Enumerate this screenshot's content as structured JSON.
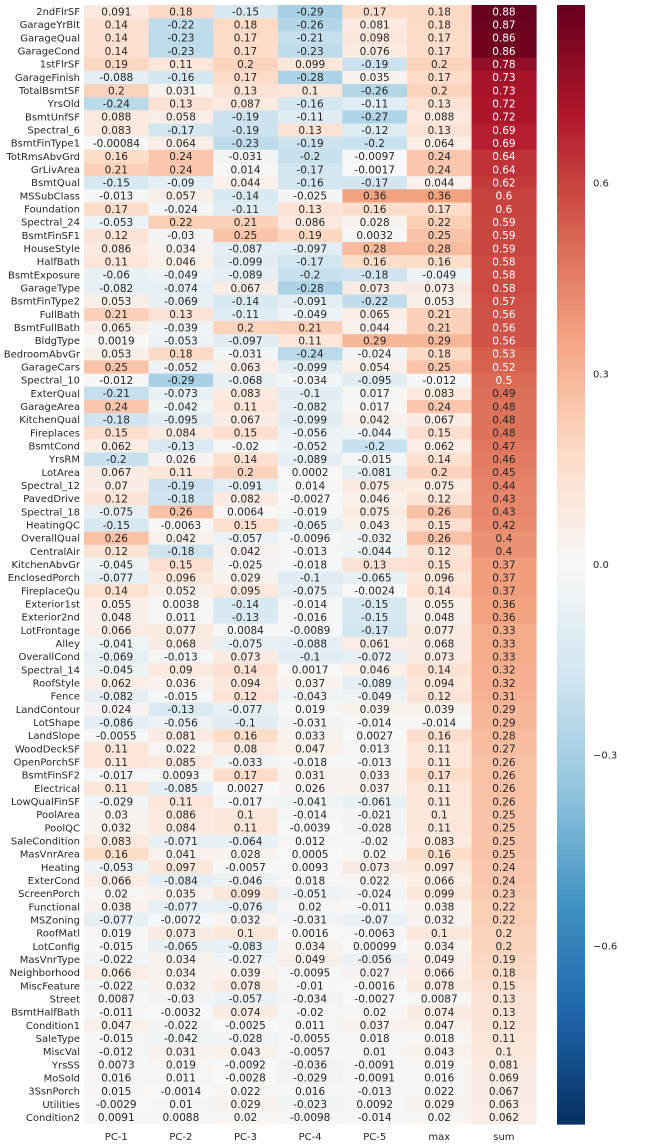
{
  "chart_data": {
    "type": "heatmap",
    "columns": [
      "PC-1",
      "PC-2",
      "PC-3",
      "PC-4",
      "PC-5",
      "max",
      "sum"
    ],
    "rows": [
      {
        "label": "2ndFlrSF",
        "values": [
          "0.091",
          "0.18",
          "-0.15",
          "-0.29",
          "0.17",
          "0.18",
          "0.88"
        ]
      },
      {
        "label": "GarageYrBlt",
        "values": [
          "0.14",
          "-0.22",
          "0.18",
          "-0.26",
          "0.081",
          "0.18",
          "0.87"
        ]
      },
      {
        "label": "GarageQual",
        "values": [
          "0.14",
          "-0.23",
          "0.17",
          "-0.21",
          "0.098",
          "0.17",
          "0.86"
        ]
      },
      {
        "label": "GarageCond",
        "values": [
          "0.14",
          "-0.23",
          "0.17",
          "-0.23",
          "0.076",
          "0.17",
          "0.86"
        ]
      },
      {
        "label": "1stFlrSF",
        "values": [
          "0.19",
          "0.11",
          "0.2",
          "0.099",
          "-0.19",
          "0.2",
          "0.78"
        ]
      },
      {
        "label": "GarageFinish",
        "values": [
          "-0.088",
          "-0.16",
          "0.17",
          "-0.28",
          "0.035",
          "0.17",
          "0.73"
        ]
      },
      {
        "label": "TotalBsmtSF",
        "values": [
          "0.2",
          "0.031",
          "0.13",
          "0.1",
          "-0.26",
          "0.2",
          "0.73"
        ]
      },
      {
        "label": "YrsOld",
        "values": [
          "-0.24",
          "0.13",
          "0.087",
          "-0.16",
          "-0.11",
          "0.13",
          "0.72"
        ]
      },
      {
        "label": "BsmtUnfSF",
        "values": [
          "0.088",
          "0.058",
          "-0.19",
          "-0.11",
          "-0.27",
          "0.088",
          "0.72"
        ]
      },
      {
        "label": "Spectral_6",
        "values": [
          "0.083",
          "-0.17",
          "-0.19",
          "0.13",
          "-0.12",
          "0.13",
          "0.69"
        ]
      },
      {
        "label": "BsmtFinType1",
        "values": [
          "-0.00084",
          "0.064",
          "-0.23",
          "-0.19",
          "-0.2",
          "0.064",
          "0.69"
        ]
      },
      {
        "label": "TotRmsAbvGrd",
        "values": [
          "0.16",
          "0.24",
          "-0.031",
          "-0.2",
          "-0.0097",
          "0.24",
          "0.64"
        ]
      },
      {
        "label": "GrLivArea",
        "values": [
          "0.21",
          "0.24",
          "0.014",
          "-0.17",
          "-0.0017",
          "0.24",
          "0.64"
        ]
      },
      {
        "label": "BsmtQual",
        "values": [
          "-0.15",
          "-0.09",
          "0.044",
          "-0.16",
          "-0.17",
          "0.044",
          "0.62"
        ]
      },
      {
        "label": "MSSubClass",
        "values": [
          "-0.013",
          "0.057",
          "-0.14",
          "-0.025",
          "0.36",
          "0.36",
          "0.6"
        ]
      },
      {
        "label": "Foundation",
        "values": [
          "0.17",
          "-0.024",
          "-0.11",
          "0.13",
          "0.16",
          "0.17",
          "0.6"
        ]
      },
      {
        "label": "Spectral_24",
        "values": [
          "-0.053",
          "0.22",
          "0.21",
          "0.086",
          "0.028",
          "0.22",
          "0.59"
        ]
      },
      {
        "label": "BsmtFinSF1",
        "values": [
          "0.12",
          "-0.03",
          "0.25",
          "0.19",
          "0.0032",
          "0.25",
          "0.59"
        ]
      },
      {
        "label": "HouseStyle",
        "values": [
          "0.086",
          "0.034",
          "-0.087",
          "-0.097",
          "0.28",
          "0.28",
          "0.59"
        ]
      },
      {
        "label": "HalfBath",
        "values": [
          "0.11",
          "0.046",
          "-0.099",
          "-0.17",
          "0.16",
          "0.16",
          "0.58"
        ]
      },
      {
        "label": "BsmtExposure",
        "values": [
          "-0.06",
          "-0.049",
          "-0.089",
          "-0.2",
          "-0.18",
          "-0.049",
          "0.58"
        ]
      },
      {
        "label": "GarageType",
        "values": [
          "-0.082",
          "-0.074",
          "0.067",
          "-0.28",
          "0.073",
          "0.073",
          "0.58"
        ]
      },
      {
        "label": "BsmtFinType2",
        "values": [
          "0.053",
          "-0.069",
          "-0.14",
          "-0.091",
          "-0.22",
          "0.053",
          "0.57"
        ]
      },
      {
        "label": "FullBath",
        "values": [
          "0.21",
          "0.13",
          "-0.11",
          "-0.049",
          "0.065",
          "0.21",
          "0.56"
        ]
      },
      {
        "label": "BsmtFullBath",
        "values": [
          "0.065",
          "-0.039",
          "0.2",
          "0.21",
          "0.044",
          "0.21",
          "0.56"
        ]
      },
      {
        "label": "BldgType",
        "values": [
          "0.0019",
          "-0.053",
          "-0.097",
          "0.11",
          "0.29",
          "0.29",
          "0.56"
        ]
      },
      {
        "label": "BedroomAbvGr",
        "values": [
          "0.053",
          "0.18",
          "-0.031",
          "-0.24",
          "-0.024",
          "0.18",
          "0.53"
        ]
      },
      {
        "label": "GarageCars",
        "values": [
          "0.25",
          "-0.052",
          "0.063",
          "-0.099",
          "0.054",
          "0.25",
          "0.52"
        ]
      },
      {
        "label": "Spectral_10",
        "values": [
          "-0.012",
          "-0.29",
          "-0.068",
          "-0.034",
          "-0.095",
          "-0.012",
          "0.5"
        ]
      },
      {
        "label": "ExterQual",
        "values": [
          "-0.21",
          "-0.073",
          "0.083",
          "-0.1",
          "0.017",
          "0.083",
          "0.49"
        ]
      },
      {
        "label": "GarageArea",
        "values": [
          "0.24",
          "-0.042",
          "0.11",
          "-0.082",
          "0.017",
          "0.24",
          "0.48"
        ]
      },
      {
        "label": "KitchenQual",
        "values": [
          "-0.18",
          "-0.095",
          "0.067",
          "-0.099",
          "0.042",
          "0.067",
          "0.48"
        ]
      },
      {
        "label": "Fireplaces",
        "values": [
          "0.15",
          "0.084",
          "0.15",
          "-0.056",
          "-0.044",
          "0.15",
          "0.48"
        ]
      },
      {
        "label": "BsmtCond",
        "values": [
          "0.062",
          "-0.13",
          "-0.02",
          "-0.052",
          "-0.2",
          "0.062",
          "0.47"
        ]
      },
      {
        "label": "YrsRM",
        "values": [
          "-0.2",
          "0.026",
          "0.14",
          "-0.089",
          "-0.015",
          "0.14",
          "0.46"
        ]
      },
      {
        "label": "LotArea",
        "values": [
          "0.067",
          "0.11",
          "0.2",
          "0.0002",
          "-0.081",
          "0.2",
          "0.45"
        ]
      },
      {
        "label": "Spectral_12",
        "values": [
          "0.07",
          "-0.19",
          "-0.091",
          "0.014",
          "0.075",
          "0.075",
          "0.44"
        ]
      },
      {
        "label": "PavedDrive",
        "values": [
          "0.12",
          "-0.18",
          "0.082",
          "-0.0027",
          "0.046",
          "0.12",
          "0.43"
        ]
      },
      {
        "label": "Spectral_18",
        "values": [
          "-0.075",
          "0.26",
          "0.0064",
          "-0.019",
          "0.075",
          "0.26",
          "0.43"
        ]
      },
      {
        "label": "HeatingQC",
        "values": [
          "-0.15",
          "-0.0063",
          "0.15",
          "-0.065",
          "0.043",
          "0.15",
          "0.42"
        ]
      },
      {
        "label": "OverallQual",
        "values": [
          "0.26",
          "0.042",
          "-0.057",
          "-0.0096",
          "-0.032",
          "0.26",
          "0.4"
        ]
      },
      {
        "label": "CentralAir",
        "values": [
          "0.12",
          "-0.18",
          "0.042",
          "-0.013",
          "-0.044",
          "0.12",
          "0.4"
        ]
      },
      {
        "label": "KitchenAbvGr",
        "values": [
          "-0.045",
          "0.15",
          "-0.025",
          "-0.018",
          "0.13",
          "0.15",
          "0.37"
        ]
      },
      {
        "label": "EnclosedPorch",
        "values": [
          "-0.077",
          "0.096",
          "0.029",
          "-0.1",
          "-0.065",
          "0.096",
          "0.37"
        ]
      },
      {
        "label": "FireplaceQu",
        "values": [
          "0.14",
          "0.052",
          "0.095",
          "-0.075",
          "-0.0024",
          "0.14",
          "0.37"
        ]
      },
      {
        "label": "Exterior1st",
        "values": [
          "0.055",
          "0.0038",
          "-0.14",
          "-0.014",
          "-0.15",
          "0.055",
          "0.36"
        ]
      },
      {
        "label": "Exterior2nd",
        "values": [
          "0.048",
          "0.011",
          "-0.13",
          "-0.016",
          "-0.15",
          "0.048",
          "0.36"
        ]
      },
      {
        "label": "LotFrontage",
        "values": [
          "0.066",
          "0.077",
          "0.0084",
          "-0.0089",
          "-0.17",
          "0.077",
          "0.33"
        ]
      },
      {
        "label": "Alley",
        "values": [
          "-0.041",
          "0.068",
          "-0.075",
          "-0.088",
          "0.061",
          "0.068",
          "0.33"
        ]
      },
      {
        "label": "OverallCond",
        "values": [
          "-0.069",
          "-0.013",
          "0.073",
          "-0.1",
          "-0.072",
          "0.073",
          "0.33"
        ]
      },
      {
        "label": "Spectral_14",
        "values": [
          "-0.045",
          "0.09",
          "0.14",
          "0.0017",
          "0.046",
          "0.14",
          "0.32"
        ]
      },
      {
        "label": "RoofStyle",
        "values": [
          "0.062",
          "0.036",
          "0.094",
          "0.037",
          "-0.089",
          "0.094",
          "0.32"
        ]
      },
      {
        "label": "Fence",
        "values": [
          "-0.082",
          "-0.015",
          "0.12",
          "-0.043",
          "-0.049",
          "0.12",
          "0.31"
        ]
      },
      {
        "label": "LandContour",
        "values": [
          "0.024",
          "-0.13",
          "-0.077",
          "0.019",
          "0.039",
          "0.039",
          "0.29"
        ]
      },
      {
        "label": "LotShape",
        "values": [
          "-0.086",
          "-0.056",
          "-0.1",
          "-0.031",
          "-0.014",
          "-0.014",
          "0.29"
        ]
      },
      {
        "label": "LandSlope",
        "values": [
          "-0.0055",
          "0.081",
          "0.16",
          "0.033",
          "0.0027",
          "0.16",
          "0.28"
        ]
      },
      {
        "label": "WoodDeckSF",
        "values": [
          "0.11",
          "0.022",
          "0.08",
          "0.047",
          "0.013",
          "0.11",
          "0.27"
        ]
      },
      {
        "label": "OpenPorchSF",
        "values": [
          "0.11",
          "0.085",
          "-0.033",
          "-0.018",
          "-0.013",
          "0.11",
          "0.26"
        ]
      },
      {
        "label": "BsmtFinSF2",
        "values": [
          "-0.017",
          "0.0093",
          "0.17",
          "0.031",
          "0.033",
          "0.17",
          "0.26"
        ]
      },
      {
        "label": "Electrical",
        "values": [
          "0.11",
          "-0.085",
          "0.0027",
          "0.026",
          "0.037",
          "0.11",
          "0.26"
        ]
      },
      {
        "label": "LowQualFinSF",
        "values": [
          "-0.029",
          "0.11",
          "-0.017",
          "-0.041",
          "-0.061",
          "0.11",
          "0.26"
        ]
      },
      {
        "label": "PoolArea",
        "values": [
          "0.03",
          "0.086",
          "0.1",
          "-0.014",
          "-0.021",
          "0.1",
          "0.25"
        ]
      },
      {
        "label": "PoolQC",
        "values": [
          "0.032",
          "0.084",
          "0.11",
          "-0.0039",
          "-0.028",
          "0.11",
          "0.25"
        ]
      },
      {
        "label": "SaleCondition",
        "values": [
          "0.083",
          "-0.071",
          "-0.064",
          "0.012",
          "-0.02",
          "0.083",
          "0.25"
        ]
      },
      {
        "label": "MasVnrArea",
        "values": [
          "0.16",
          "0.041",
          "0.028",
          "0.0005",
          "0.02",
          "0.16",
          "0.25"
        ]
      },
      {
        "label": "Heating",
        "values": [
          "-0.053",
          "0.097",
          "-0.0057",
          "0.0093",
          "0.073",
          "0.097",
          "0.24"
        ]
      },
      {
        "label": "ExterCond",
        "values": [
          "0.066",
          "-0.084",
          "-0.046",
          "0.018",
          "0.022",
          "0.066",
          "0.24"
        ]
      },
      {
        "label": "ScreenPorch",
        "values": [
          "0.02",
          "0.035",
          "0.099",
          "-0.051",
          "-0.024",
          "0.099",
          "0.23"
        ]
      },
      {
        "label": "Functional",
        "values": [
          "0.038",
          "-0.077",
          "-0.076",
          "0.02",
          "-0.011",
          "0.038",
          "0.22"
        ]
      },
      {
        "label": "MSZoning",
        "values": [
          "-0.077",
          "-0.0072",
          "0.032",
          "-0.031",
          "-0.07",
          "0.032",
          "0.22"
        ]
      },
      {
        "label": "RoofMatl",
        "values": [
          "0.019",
          "0.073",
          "0.1",
          "0.0016",
          "-0.0063",
          "0.1",
          "0.2"
        ]
      },
      {
        "label": "LotConfig",
        "values": [
          "-0.015",
          "-0.065",
          "-0.083",
          "0.034",
          "0.00099",
          "0.034",
          "0.2"
        ]
      },
      {
        "label": "MasVnrType",
        "values": [
          "-0.022",
          "0.034",
          "-0.027",
          "0.049",
          "-0.056",
          "0.049",
          "0.19"
        ]
      },
      {
        "label": "Neighborhood",
        "values": [
          "0.066",
          "0.034",
          "0.039",
          "-0.0095",
          "0.027",
          "0.066",
          "0.18"
        ]
      },
      {
        "label": "MiscFeature",
        "values": [
          "-0.022",
          "0.032",
          "0.078",
          "-0.01",
          "-0.0016",
          "0.078",
          "0.15"
        ]
      },
      {
        "label": "Street",
        "values": [
          "0.0087",
          "-0.03",
          "-0.057",
          "-0.034",
          "-0.0027",
          "0.0087",
          "0.13"
        ]
      },
      {
        "label": "BsmtHalfBath",
        "values": [
          "-0.011",
          "-0.0032",
          "0.074",
          "-0.02",
          "0.02",
          "0.074",
          "0.13"
        ]
      },
      {
        "label": "Condition1",
        "values": [
          "0.047",
          "-0.022",
          "-0.0025",
          "0.011",
          "0.037",
          "0.047",
          "0.12"
        ]
      },
      {
        "label": "SaleType",
        "values": [
          "-0.015",
          "-0.042",
          "-0.028",
          "-0.0055",
          "0.018",
          "0.018",
          "0.11"
        ]
      },
      {
        "label": "MiscVal",
        "values": [
          "-0.012",
          "0.031",
          "0.043",
          "-0.0057",
          "0.01",
          "0.043",
          "0.1"
        ]
      },
      {
        "label": "YrsSS",
        "values": [
          "0.0073",
          "0.019",
          "-0.0092",
          "-0.036",
          "-0.0091",
          "0.019",
          "0.081"
        ]
      },
      {
        "label": "MoSold",
        "values": [
          "0.016",
          "0.011",
          "-0.0028",
          "-0.029",
          "-0.0091",
          "0.016",
          "0.069"
        ]
      },
      {
        "label": "3SsnPorch",
        "values": [
          "0.015",
          "-0.0014",
          "0.022",
          "0.016",
          "-0.013",
          "0.022",
          "0.067"
        ]
      },
      {
        "label": "Utilities",
        "values": [
          "-0.0029",
          "0.01",
          "0.029",
          "-0.023",
          "0.0092",
          "0.029",
          "0.063"
        ]
      },
      {
        "label": "Condition2",
        "values": [
          "0.0091",
          "0.0088",
          "0.02",
          "-0.0098",
          "-0.014",
          "0.02",
          "0.062"
        ]
      }
    ],
    "colorbar": {
      "range": [
        -0.88,
        0.88
      ],
      "ticks": [
        "0.6",
        "0.3",
        "0.0",
        "−0.3",
        "−0.6"
      ],
      "tick_values": [
        0.6,
        0.3,
        0.0,
        -0.3,
        -0.6
      ],
      "colormap": "RdBu_r"
    },
    "grid": false,
    "colors": {
      "negative_max": "#053061",
      "neutral": "#f7f7f7",
      "positive_max": "#67001f"
    }
  }
}
